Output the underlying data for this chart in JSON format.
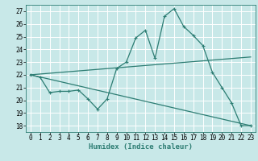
{
  "xlabel": "Humidex (Indice chaleur)",
  "background_color": "#c8e8e8",
  "grid_color": "#ffffff",
  "line_color": "#2d7d73",
  "xlim": [
    -0.5,
    23.5
  ],
  "ylim": [
    17.5,
    27.5
  ],
  "xticks": [
    0,
    1,
    2,
    3,
    4,
    5,
    6,
    7,
    8,
    9,
    10,
    11,
    12,
    13,
    14,
    15,
    16,
    17,
    18,
    19,
    20,
    21,
    22,
    23
  ],
  "yticks": [
    18,
    19,
    20,
    21,
    22,
    23,
    24,
    25,
    26,
    27
  ],
  "line1_x": [
    0,
    1,
    2,
    3,
    4,
    5,
    6,
    7,
    8,
    9,
    10,
    11,
    12,
    13,
    14,
    15,
    16,
    17,
    18,
    19,
    20,
    21,
    22,
    23
  ],
  "line1_y": [
    22.0,
    21.8,
    20.6,
    20.7,
    20.7,
    20.8,
    20.1,
    19.3,
    20.1,
    22.5,
    23.0,
    24.9,
    25.5,
    23.3,
    26.6,
    27.2,
    25.8,
    25.1,
    24.3,
    22.2,
    21.0,
    19.8,
    18.0,
    18.0
  ],
  "line2_x": [
    0,
    23
  ],
  "line2_y": [
    22.0,
    23.4
  ],
  "line3_x": [
    0,
    23
  ],
  "line3_y": [
    22.0,
    18.0
  ],
  "tick_fontsize": 5.5,
  "xlabel_fontsize": 6.5,
  "lw": 0.9,
  "ms": 2.5
}
